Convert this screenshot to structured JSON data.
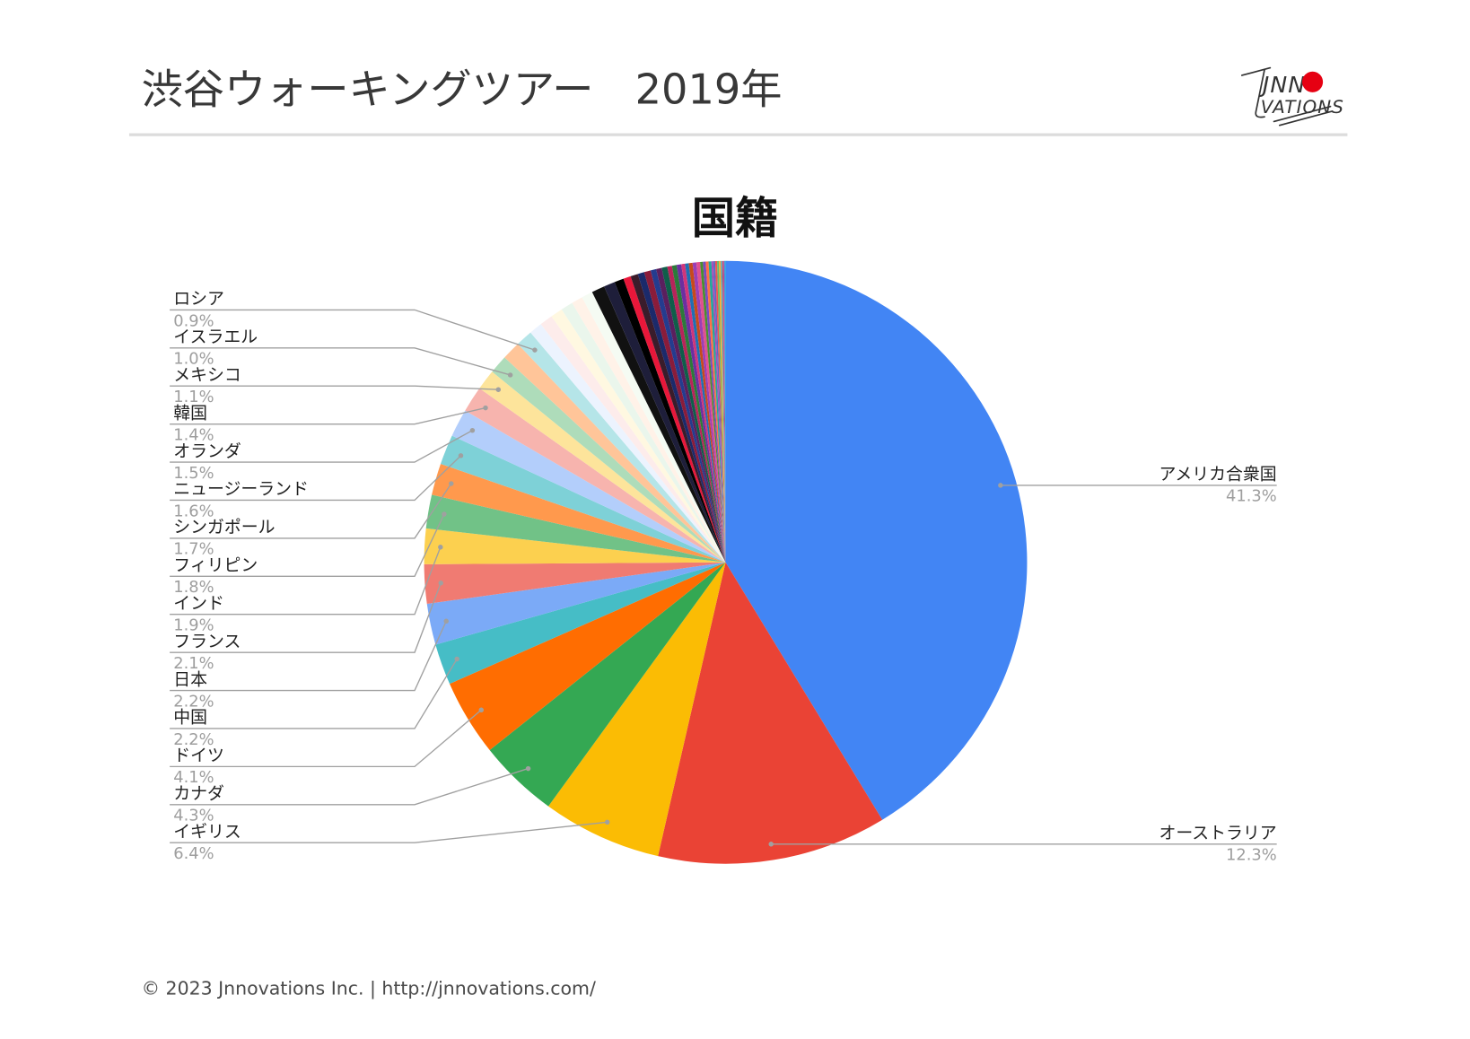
{
  "slide": {
    "title": "渋谷ウォーキングツアー　2019年",
    "footer": "© 2023 Jnnovations Inc. | http://jnnovations.com/",
    "logo": {
      "top": "JNN",
      "bottom": "VATIONS",
      "accent_color": "#e60012"
    }
  },
  "chart_data": {
    "type": "pie",
    "title": "国籍",
    "slices": [
      {
        "label": "アメリカ合衆国",
        "value": 41.3,
        "value_label": "41.3%",
        "color": "#4285f4"
      },
      {
        "label": "オーストラリア",
        "value": 12.3,
        "value_label": "12.3%",
        "color": "#ea4335"
      },
      {
        "label": "イギリス",
        "value": 6.4,
        "value_label": "6.4%",
        "color": "#fbbc04"
      },
      {
        "label": "カナダ",
        "value": 4.3,
        "value_label": "4.3%",
        "color": "#34a853"
      },
      {
        "label": "ドイツ",
        "value": 4.1,
        "value_label": "4.1%",
        "color": "#ff6d01"
      },
      {
        "label": "中国",
        "value": 2.2,
        "value_label": "2.2%",
        "color": "#46bdc6"
      },
      {
        "label": "日本",
        "value": 2.2,
        "value_label": "2.2%",
        "color": "#7baaf7"
      },
      {
        "label": "フランス",
        "value": 2.1,
        "value_label": "2.1%",
        "color": "#f07b72"
      },
      {
        "label": "インド",
        "value": 1.9,
        "value_label": "1.9%",
        "color": "#fcd04f"
      },
      {
        "label": "フィリピン",
        "value": 1.8,
        "value_label": "1.8%",
        "color": "#71c287"
      },
      {
        "label": "シンガポール",
        "value": 1.7,
        "value_label": "1.7%",
        "color": "#ff994d"
      },
      {
        "label": "ニュージーランド",
        "value": 1.6,
        "value_label": "1.6%",
        "color": "#7ed1d7"
      },
      {
        "label": "オランダ",
        "value": 1.5,
        "value_label": "1.5%",
        "color": "#b3cefb"
      },
      {
        "label": "韓国",
        "value": 1.4,
        "value_label": "1.4%",
        "color": "#f7b4ae"
      },
      {
        "label": "メキシコ",
        "value": 1.1,
        "value_label": "1.1%",
        "color": "#fde49b"
      },
      {
        "label": "イスラエル",
        "value": 1.0,
        "value_label": "1.0%",
        "color": "#aedcba"
      },
      {
        "value": 1.0,
        "color": "#ffc599"
      },
      {
        "label": "ロシア",
        "value": 0.9,
        "value_label": "0.9%",
        "color": "#b5e5e8"
      },
      {
        "value": 0.7,
        "color": "#ecf3fe"
      },
      {
        "value": 0.7,
        "color": "#fdeceb"
      },
      {
        "value": 0.65,
        "color": "#fff8e1"
      },
      {
        "value": 0.65,
        "color": "#eaf6ec"
      },
      {
        "value": 0.6,
        "color": "#fff2e8"
      },
      {
        "value": 0.6,
        "color": "#f5fbf3"
      },
      {
        "value": 0.7,
        "color": "#111111"
      },
      {
        "value": 0.6,
        "color": "#1e1e3a"
      },
      {
        "value": 0.5,
        "color": "#000000"
      },
      {
        "value": 0.4,
        "color": "#e8173a"
      },
      {
        "value": 0.4,
        "color": "#3a1c2b"
      },
      {
        "value": 0.35,
        "color": "#1b2a6b"
      },
      {
        "value": 0.35,
        "color": "#8a1c3a"
      },
      {
        "value": 0.3,
        "color": "#243c8f"
      },
      {
        "value": 0.3,
        "color": "#5a1f5e"
      },
      {
        "value": 0.3,
        "color": "#0f5e4a"
      },
      {
        "value": 0.25,
        "color": "#b8245a"
      },
      {
        "value": 0.25,
        "color": "#2c7a3a"
      },
      {
        "value": 0.25,
        "color": "#6b2fa0"
      },
      {
        "value": 0.2,
        "color": "#d1357a"
      },
      {
        "value": 0.2,
        "color": "#1f6fb5"
      },
      {
        "value": 0.2,
        "color": "#c74a1c"
      },
      {
        "value": 0.2,
        "color": "#9b3fb5"
      },
      {
        "value": 0.2,
        "color": "#e05090"
      },
      {
        "value": 0.15,
        "color": "#4a8f2f"
      },
      {
        "value": 0.15,
        "color": "#7a4ac0"
      },
      {
        "value": 0.15,
        "color": "#ff7043"
      },
      {
        "value": 0.15,
        "color": "#26a69a"
      },
      {
        "value": 0.1,
        "color": "#ab47bc"
      },
      {
        "value": 0.1,
        "color": "#5c6bc0"
      },
      {
        "value": 0.1,
        "color": "#ef5350"
      },
      {
        "value": 0.1,
        "color": "#66bb6a"
      },
      {
        "value": 0.1,
        "color": "#ffa726"
      },
      {
        "value": 0.05,
        "color": "#29b6f6"
      },
      {
        "value": 0.05,
        "color": "#8d6e63"
      },
      {
        "value": 0.05,
        "color": "#ec407a"
      },
      {
        "value": 0.05,
        "color": "#7e57c2"
      },
      {
        "value": 0.05,
        "color": "#26c6da"
      }
    ]
  }
}
